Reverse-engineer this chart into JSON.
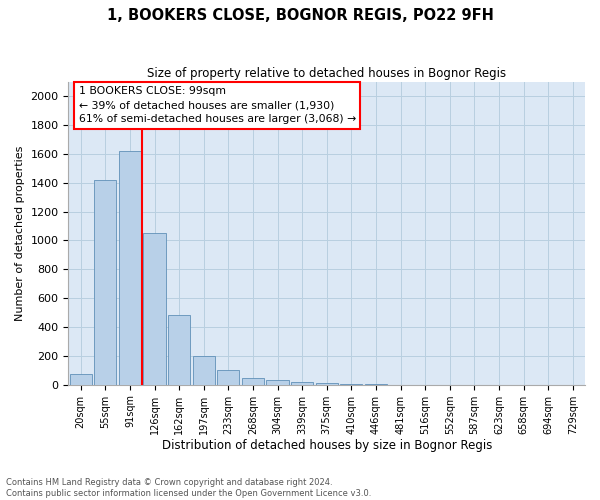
{
  "title": "1, BOOKERS CLOSE, BOGNOR REGIS, PO22 9FH",
  "subtitle": "Size of property relative to detached houses in Bognor Regis",
  "xlabel": "Distribution of detached houses by size in Bognor Regis",
  "ylabel": "Number of detached properties",
  "categories": [
    "20sqm",
    "55sqm",
    "91sqm",
    "126sqm",
    "162sqm",
    "197sqm",
    "233sqm",
    "268sqm",
    "304sqm",
    "339sqm",
    "375sqm",
    "410sqm",
    "446sqm",
    "481sqm",
    "516sqm",
    "552sqm",
    "587sqm",
    "623sqm",
    "658sqm",
    "694sqm",
    "729sqm"
  ],
  "values": [
    75,
    1420,
    1620,
    1050,
    480,
    200,
    100,
    45,
    30,
    20,
    15,
    5,
    2,
    0,
    0,
    0,
    0,
    0,
    0,
    0,
    0
  ],
  "bar_color": "#b8d0e8",
  "bar_edge_color": "#6090b8",
  "annotation_line1": "1 BOOKERS CLOSE: 99sqm",
  "annotation_line2": "← 39% of detached houses are smaller (1,930)",
  "annotation_line3": "61% of semi-detached houses are larger (3,068) →",
  "ylim_max": 2100,
  "yticks": [
    0,
    200,
    400,
    600,
    800,
    1000,
    1200,
    1400,
    1600,
    1800,
    2000
  ],
  "bg_color": "#ffffff",
  "plot_bg": "#dce8f5",
  "grid_color": "#b8cfe0",
  "footer1": "Contains HM Land Registry data © Crown copyright and database right 2024.",
  "footer2": "Contains public sector information licensed under the Open Government Licence v3.0."
}
